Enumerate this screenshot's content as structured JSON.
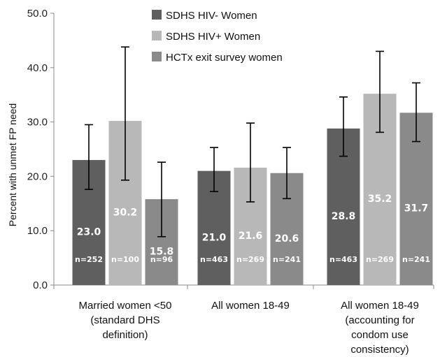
{
  "chart_data": {
    "type": "bar",
    "title": "",
    "ylabel": "Percent with unmet FP need",
    "xlabel": "",
    "ylim": [
      0,
      50
    ],
    "yticks": [
      "0.0",
      "10.0",
      "20.0",
      "30.0",
      "40.0",
      "50.0"
    ],
    "grid": false,
    "legend_position": "top-center",
    "categories": [
      [
        "Married women <50",
        "(standard DHS",
        "definition)"
      ],
      [
        "All women 18-49"
      ],
      [
        "All women 18-49",
        "(accounting for",
        "condom use",
        "consistency)"
      ]
    ],
    "series": [
      {
        "name": "SDHS HIV- Women",
        "color": "#5f5f5f",
        "values": [
          23.0,
          21.0,
          28.8
        ],
        "value_labels": [
          "23.0",
          "21.0",
          "28.8"
        ],
        "n_labels": [
          "n=252",
          "n=463",
          "n=463"
        ],
        "error_low": [
          17.6,
          17.2,
          23.7
        ],
        "error_high": [
          29.5,
          25.3,
          34.6
        ]
      },
      {
        "name": "SDHS HIV+ Women",
        "color": "#b8b8b8",
        "values": [
          30.2,
          21.6,
          35.2
        ],
        "value_labels": [
          "30.2",
          "21.6",
          "35.2"
        ],
        "n_labels": [
          "n=100",
          "n=269",
          "n=269"
        ],
        "error_low": [
          19.3,
          15.3,
          28.1
        ],
        "error_high": [
          43.8,
          29.8,
          43.0
        ]
      },
      {
        "name": "HCTx exit survey women",
        "color": "#8a8a8a",
        "values": [
          15.8,
          20.6,
          31.7
        ],
        "value_labels": [
          "15.8",
          "20.6",
          "31.7"
        ],
        "n_labels": [
          "n=96",
          "n=241",
          "n=241"
        ],
        "error_low": [
          8.9,
          15.9,
          26.4
        ],
        "error_high": [
          22.6,
          25.3,
          37.2
        ]
      }
    ]
  }
}
